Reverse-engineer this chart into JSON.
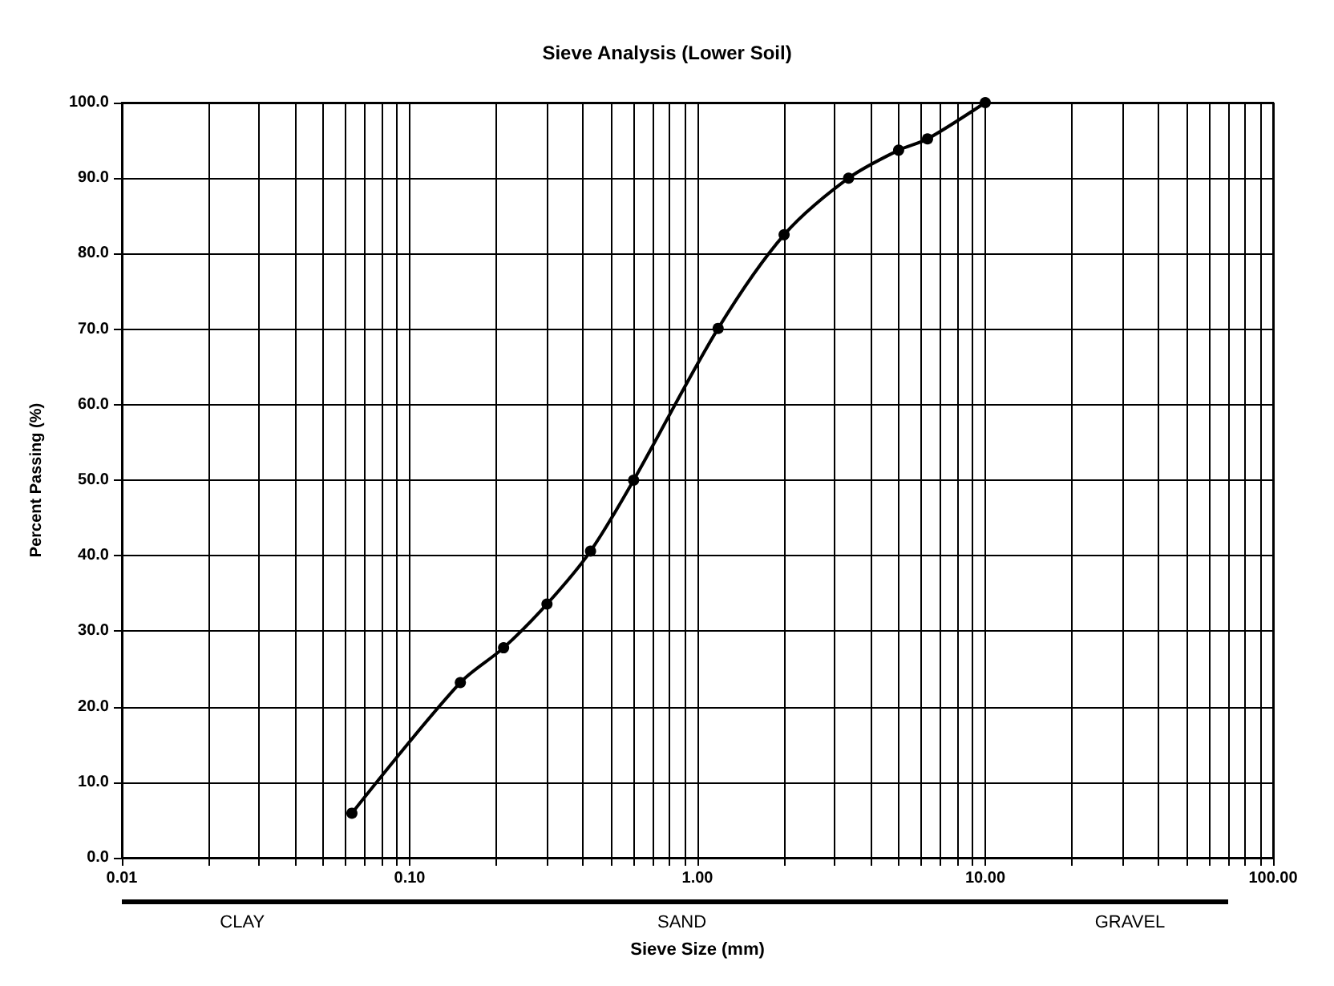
{
  "chart_data": {
    "type": "line",
    "title": "Sieve Analysis (Lower Soil)",
    "xlabel": "Sieve Size (mm)",
    "ylabel": "Percent Passing (%)",
    "annotations": [
      "CLAY",
      "SAND",
      "GRAVEL"
    ],
    "x": [
      0.063,
      0.15,
      0.212,
      0.3,
      0.425,
      0.6,
      1.18,
      2,
      3.35,
      5,
      6.3,
      10
    ],
    "series": [
      {
        "color": "#000000",
        "values": [
          5.9,
          23.2,
          27.8,
          33.6,
          40.6,
          50.0,
          70.1,
          82.5,
          90.0,
          93.7,
          95.2,
          100.0
        ]
      }
    ],
    "log": "x",
    "xlim": [
      0.01,
      100
    ],
    "ylim": [
      0,
      100
    ],
    "xticks": [
      {
        "value": 0.01,
        "label": "0.01"
      },
      {
        "value": 0.02,
        "label": null
      },
      {
        "value": 0.03,
        "label": null
      },
      {
        "value": 0.04,
        "label": null
      },
      {
        "value": 0.05,
        "label": null
      },
      {
        "value": 0.06,
        "label": null
      },
      {
        "value": 0.07,
        "label": null
      },
      {
        "value": 0.08,
        "label": null
      },
      {
        "value": 0.09,
        "label": null
      },
      {
        "value": 0.1,
        "label": "0.10"
      },
      {
        "value": 0.2,
        "label": null
      },
      {
        "value": 0.3,
        "label": null
      },
      {
        "value": 0.4,
        "label": null
      },
      {
        "value": 0.5,
        "label": null
      },
      {
        "value": 0.6,
        "label": null
      },
      {
        "value": 0.7,
        "label": null
      },
      {
        "value": 0.8,
        "label": null
      },
      {
        "value": 0.9,
        "label": null
      },
      {
        "value": 1,
        "label": "1.00"
      },
      {
        "value": 2,
        "label": null
      },
      {
        "value": 3,
        "label": null
      },
      {
        "value": 4,
        "label": null
      },
      {
        "value": 5,
        "label": null
      },
      {
        "value": 6,
        "label": null
      },
      {
        "value": 7,
        "label": null
      },
      {
        "value": 8,
        "label": null
      },
      {
        "value": 9,
        "label": null
      },
      {
        "value": 10,
        "label": "10.00"
      },
      {
        "value": 20,
        "label": null
      },
      {
        "value": 30,
        "label": null
      },
      {
        "value": 40,
        "label": null
      },
      {
        "value": 50,
        "label": null
      },
      {
        "value": 60,
        "label": null
      },
      {
        "value": 70,
        "label": null
      },
      {
        "value": 80,
        "label": null
      },
      {
        "value": 90,
        "label": null
      },
      {
        "value": 100,
        "label": "100.00"
      }
    ],
    "yticks": [
      {
        "value": 0,
        "label": "0.0"
      },
      {
        "value": 10,
        "label": "10.0"
      },
      {
        "value": 20,
        "label": "20.0"
      },
      {
        "value": 30,
        "label": "30.0"
      },
      {
        "value": 40,
        "label": "40.0"
      },
      {
        "value": 50,
        "label": "50.0"
      },
      {
        "value": 60,
        "label": "60.0"
      },
      {
        "value": 70,
        "label": "70.0"
      },
      {
        "value": 80,
        "label": "80.0"
      },
      {
        "value": 90,
        "label": "90.0"
      },
      {
        "value": 100,
        "label": "100.0"
      }
    ],
    "grid": true,
    "marker": "circle",
    "line_style": "solid"
  }
}
